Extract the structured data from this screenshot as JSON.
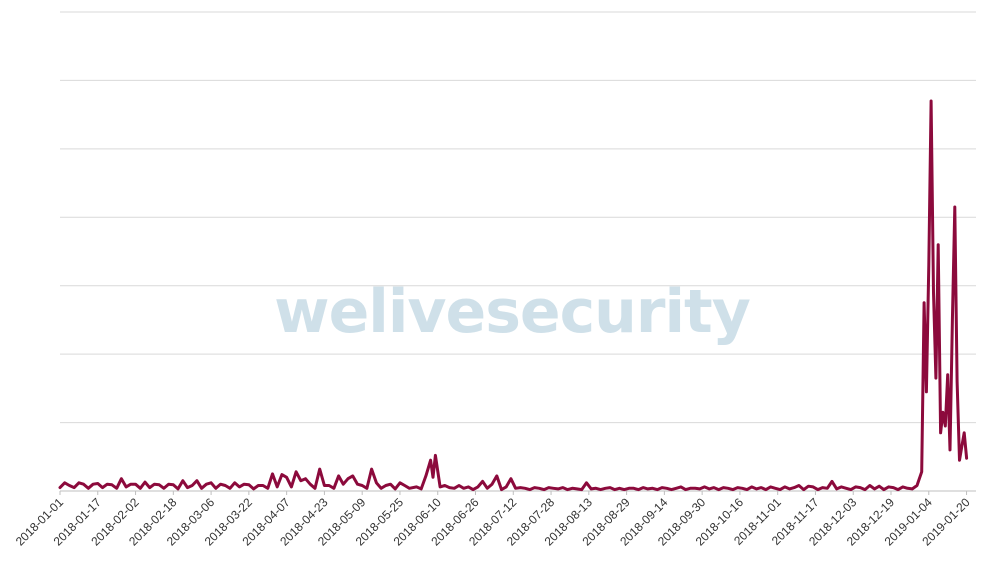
{
  "watermark": {
    "part1": "welive",
    "part2": "security",
    "color1": "#a8c8d8",
    "color2": "#a8c8d8"
  },
  "colors": {
    "line": "#8c0a3c",
    "grid": "#d9d9d9",
    "background": "#ffffff"
  },
  "chart_data": {
    "type": "line",
    "title": "",
    "xlabel": "",
    "ylabel": "",
    "grid": true,
    "legend": "none",
    "ylim": [
      0,
      7
    ],
    "x_tick_labels": [
      "2018-01-01",
      "2018-01-17",
      "2018-02-02",
      "2018-02-18",
      "2018-03-06",
      "2018-03-22",
      "2018-04-07",
      "2018-04-23",
      "2018-05-09",
      "2018-05-25",
      "2018-06-10",
      "2018-06-26",
      "2018-07-12",
      "2018-07-28",
      "2018-08-13",
      "2018-08-29",
      "2018-09-14",
      "2018-09-30",
      "2018-10-16",
      "2018-11-01",
      "2018-11-17",
      "2018-12-03",
      "2018-12-19",
      "2019-01-04",
      "2019-01-20"
    ],
    "x_start": "2018-01-01",
    "x_end": "2019-01-24",
    "series": [
      {
        "name": "",
        "points": [
          [
            "2018-01-01",
            0.05
          ],
          [
            "2018-01-03",
            0.12
          ],
          [
            "2018-01-05",
            0.08
          ],
          [
            "2018-01-07",
            0.05
          ],
          [
            "2018-01-09",
            0.12
          ],
          [
            "2018-01-11",
            0.1
          ],
          [
            "2018-01-13",
            0.04
          ],
          [
            "2018-01-15",
            0.1
          ],
          [
            "2018-01-17",
            0.11
          ],
          [
            "2018-01-19",
            0.05
          ],
          [
            "2018-01-21",
            0.1
          ],
          [
            "2018-01-23",
            0.09
          ],
          [
            "2018-01-25",
            0.04
          ],
          [
            "2018-01-27",
            0.18
          ],
          [
            "2018-01-29",
            0.06
          ],
          [
            "2018-01-31",
            0.1
          ],
          [
            "2018-02-02",
            0.1
          ],
          [
            "2018-02-04",
            0.04
          ],
          [
            "2018-02-06",
            0.13
          ],
          [
            "2018-02-08",
            0.05
          ],
          [
            "2018-02-10",
            0.1
          ],
          [
            "2018-02-12",
            0.09
          ],
          [
            "2018-02-14",
            0.04
          ],
          [
            "2018-02-16",
            0.1
          ],
          [
            "2018-02-18",
            0.09
          ],
          [
            "2018-02-20",
            0.03
          ],
          [
            "2018-02-22",
            0.15
          ],
          [
            "2018-02-24",
            0.05
          ],
          [
            "2018-02-26",
            0.08
          ],
          [
            "2018-02-28",
            0.15
          ],
          [
            "2018-03-02",
            0.04
          ],
          [
            "2018-03-04",
            0.1
          ],
          [
            "2018-03-06",
            0.12
          ],
          [
            "2018-03-08",
            0.04
          ],
          [
            "2018-03-10",
            0.1
          ],
          [
            "2018-03-12",
            0.08
          ],
          [
            "2018-03-14",
            0.04
          ],
          [
            "2018-03-16",
            0.12
          ],
          [
            "2018-03-18",
            0.06
          ],
          [
            "2018-03-20",
            0.1
          ],
          [
            "2018-03-22",
            0.09
          ],
          [
            "2018-03-24",
            0.03
          ],
          [
            "2018-03-26",
            0.08
          ],
          [
            "2018-03-28",
            0.08
          ],
          [
            "2018-03-30",
            0.04
          ],
          [
            "2018-04-01",
            0.25
          ],
          [
            "2018-04-03",
            0.06
          ],
          [
            "2018-04-05",
            0.24
          ],
          [
            "2018-04-07",
            0.2
          ],
          [
            "2018-04-09",
            0.06
          ],
          [
            "2018-04-11",
            0.28
          ],
          [
            "2018-04-13",
            0.15
          ],
          [
            "2018-04-15",
            0.18
          ],
          [
            "2018-04-17",
            0.1
          ],
          [
            "2018-04-19",
            0.04
          ],
          [
            "2018-04-21",
            0.32
          ],
          [
            "2018-04-23",
            0.08
          ],
          [
            "2018-04-25",
            0.08
          ],
          [
            "2018-04-27",
            0.04
          ],
          [
            "2018-04-29",
            0.22
          ],
          [
            "2018-05-01",
            0.1
          ],
          [
            "2018-05-03",
            0.18
          ],
          [
            "2018-05-05",
            0.22
          ],
          [
            "2018-05-07",
            0.1
          ],
          [
            "2018-05-09",
            0.08
          ],
          [
            "2018-05-11",
            0.04
          ],
          [
            "2018-05-13",
            0.32
          ],
          [
            "2018-05-15",
            0.12
          ],
          [
            "2018-05-17",
            0.04
          ],
          [
            "2018-05-19",
            0.08
          ],
          [
            "2018-05-21",
            0.1
          ],
          [
            "2018-05-23",
            0.03
          ],
          [
            "2018-05-25",
            0.12
          ],
          [
            "2018-05-27",
            0.08
          ],
          [
            "2018-05-29",
            0.04
          ],
          [
            "2018-06-01",
            0.06
          ],
          [
            "2018-06-03",
            0.03
          ],
          [
            "2018-06-05",
            0.22
          ],
          [
            "2018-06-07",
            0.45
          ],
          [
            "2018-06-08",
            0.2
          ],
          [
            "2018-06-09",
            0.52
          ],
          [
            "2018-06-11",
            0.06
          ],
          [
            "2018-06-13",
            0.08
          ],
          [
            "2018-06-15",
            0.05
          ],
          [
            "2018-06-17",
            0.04
          ],
          [
            "2018-06-19",
            0.08
          ],
          [
            "2018-06-21",
            0.04
          ],
          [
            "2018-06-23",
            0.06
          ],
          [
            "2018-06-25",
            0.02
          ],
          [
            "2018-06-27",
            0.06
          ],
          [
            "2018-06-29",
            0.14
          ],
          [
            "2018-07-01",
            0.04
          ],
          [
            "2018-07-03",
            0.1
          ],
          [
            "2018-07-05",
            0.22
          ],
          [
            "2018-07-07",
            0.02
          ],
          [
            "2018-07-09",
            0.06
          ],
          [
            "2018-07-11",
            0.18
          ],
          [
            "2018-07-13",
            0.04
          ],
          [
            "2018-07-15",
            0.05
          ],
          [
            "2018-07-17",
            0.04
          ],
          [
            "2018-07-19",
            0.02
          ],
          [
            "2018-07-21",
            0.05
          ],
          [
            "2018-07-23",
            0.04
          ],
          [
            "2018-07-25",
            0.02
          ],
          [
            "2018-07-27",
            0.05
          ],
          [
            "2018-07-29",
            0.04
          ],
          [
            "2018-07-31",
            0.03
          ],
          [
            "2018-08-02",
            0.05
          ],
          [
            "2018-08-04",
            0.02
          ],
          [
            "2018-08-06",
            0.04
          ],
          [
            "2018-08-08",
            0.03
          ],
          [
            "2018-08-10",
            0.02
          ],
          [
            "2018-08-12",
            0.12
          ],
          [
            "2018-08-14",
            0.03
          ],
          [
            "2018-08-16",
            0.04
          ],
          [
            "2018-08-18",
            0.02
          ],
          [
            "2018-08-20",
            0.04
          ],
          [
            "2018-08-22",
            0.05
          ],
          [
            "2018-08-24",
            0.02
          ],
          [
            "2018-08-26",
            0.04
          ],
          [
            "2018-08-28",
            0.02
          ],
          [
            "2018-08-30",
            0.04
          ],
          [
            "2018-09-01",
            0.04
          ],
          [
            "2018-09-03",
            0.02
          ],
          [
            "2018-09-05",
            0.05
          ],
          [
            "2018-09-07",
            0.03
          ],
          [
            "2018-09-09",
            0.04
          ],
          [
            "2018-09-11",
            0.02
          ],
          [
            "2018-09-13",
            0.05
          ],
          [
            "2018-09-15",
            0.04
          ],
          [
            "2018-09-17",
            0.02
          ],
          [
            "2018-09-19",
            0.04
          ],
          [
            "2018-09-21",
            0.06
          ],
          [
            "2018-09-23",
            0.02
          ],
          [
            "2018-09-25",
            0.04
          ],
          [
            "2018-09-27",
            0.04
          ],
          [
            "2018-09-29",
            0.03
          ],
          [
            "2018-10-01",
            0.06
          ],
          [
            "2018-10-03",
            0.03
          ],
          [
            "2018-10-05",
            0.05
          ],
          [
            "2018-10-07",
            0.02
          ],
          [
            "2018-10-09",
            0.05
          ],
          [
            "2018-10-11",
            0.04
          ],
          [
            "2018-10-13",
            0.02
          ],
          [
            "2018-10-15",
            0.05
          ],
          [
            "2018-10-17",
            0.04
          ],
          [
            "2018-10-19",
            0.02
          ],
          [
            "2018-10-21",
            0.06
          ],
          [
            "2018-10-23",
            0.03
          ],
          [
            "2018-10-25",
            0.05
          ],
          [
            "2018-10-27",
            0.02
          ],
          [
            "2018-10-29",
            0.06
          ],
          [
            "2018-10-31",
            0.04
          ],
          [
            "2018-11-02",
            0.02
          ],
          [
            "2018-11-04",
            0.06
          ],
          [
            "2018-11-06",
            0.03
          ],
          [
            "2018-11-08",
            0.05
          ],
          [
            "2018-11-10",
            0.08
          ],
          [
            "2018-11-12",
            0.02
          ],
          [
            "2018-11-14",
            0.07
          ],
          [
            "2018-11-16",
            0.06
          ],
          [
            "2018-11-18",
            0.02
          ],
          [
            "2018-11-20",
            0.05
          ],
          [
            "2018-11-22",
            0.04
          ],
          [
            "2018-11-24",
            0.14
          ],
          [
            "2018-11-26",
            0.03
          ],
          [
            "2018-11-28",
            0.06
          ],
          [
            "2018-11-30",
            0.04
          ],
          [
            "2018-12-02",
            0.02
          ],
          [
            "2018-12-04",
            0.06
          ],
          [
            "2018-12-06",
            0.05
          ],
          [
            "2018-12-08",
            0.02
          ],
          [
            "2018-12-10",
            0.08
          ],
          [
            "2018-12-12",
            0.03
          ],
          [
            "2018-12-14",
            0.07
          ],
          [
            "2018-12-16",
            0.02
          ],
          [
            "2018-12-18",
            0.06
          ],
          [
            "2018-12-20",
            0.05
          ],
          [
            "2018-12-22",
            0.02
          ],
          [
            "2018-12-24",
            0.06
          ],
          [
            "2018-12-26",
            0.04
          ],
          [
            "2018-12-28",
            0.03
          ],
          [
            "2018-12-30",
            0.08
          ],
          [
            "2019-01-01",
            0.28
          ],
          [
            "2019-01-02",
            2.75
          ],
          [
            "2019-01-03",
            1.45
          ],
          [
            "2019-01-04",
            3.3
          ],
          [
            "2019-01-05",
            5.7
          ],
          [
            "2019-01-06",
            2.9
          ],
          [
            "2019-01-07",
            1.65
          ],
          [
            "2019-01-08",
            3.6
          ],
          [
            "2019-01-09",
            0.85
          ],
          [
            "2019-01-10",
            1.15
          ],
          [
            "2019-01-11",
            0.95
          ],
          [
            "2019-01-12",
            1.7
          ],
          [
            "2019-01-13",
            0.6
          ],
          [
            "2019-01-14",
            2.5
          ],
          [
            "2019-01-15",
            4.15
          ],
          [
            "2019-01-16",
            1.6
          ],
          [
            "2019-01-17",
            0.45
          ],
          [
            "2019-01-18",
            0.65
          ],
          [
            "2019-01-19",
            0.85
          ],
          [
            "2019-01-20",
            0.48
          ]
        ]
      }
    ]
  }
}
